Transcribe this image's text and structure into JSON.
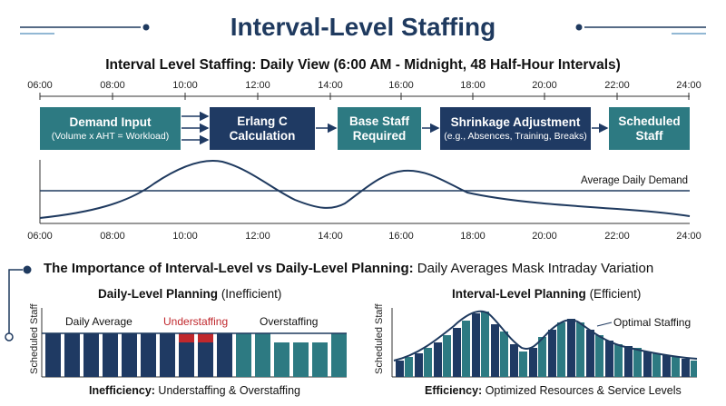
{
  "header": {
    "title": "Interval-Level Staffing",
    "subtitle": "Interval Level Staffing: Daily View (6:00 AM - Midnight, 48 Half-Hour Intervals)"
  },
  "time_ticks": [
    "06:00",
    "08:00",
    "10:00",
    "12:00",
    "14:00",
    "16:00",
    "18:00",
    "20:00",
    "22:00",
    "24:00"
  ],
  "flow": {
    "demand_input": {
      "main": "Demand Input",
      "sub": "(Volume x AHT = Workload)"
    },
    "erlang": {
      "main_1": "Erlang C",
      "main_2": "Calculation"
    },
    "base_staff": {
      "main_1": "Base Staff",
      "main_2": "Required"
    },
    "shrinkage": {
      "main": "Shrinkage Adjustment",
      "sub": "(e.g., Absences, Training, Breaks)"
    },
    "scheduled": {
      "main_1": "Scheduled",
      "main_2": "Staff"
    }
  },
  "demand_chart": {
    "avg_label": "Average Daily Demand"
  },
  "importance": {
    "bold": "The Importance of Interval-Level vs Daily-Level Planning:",
    "light": "Daily Averages Mask Intraday Variation"
  },
  "daily": {
    "title_bold": "Daily-Level Planning",
    "title_light": "(Inefficient)",
    "ylabel": "Scheduled Staff",
    "avg_label": "Daily Average",
    "under_label": "Understaffing",
    "over_label": "Overstaffing",
    "footer_bold": "Inefficiency:",
    "footer_light": "Understaffing & Overstaffing"
  },
  "interval": {
    "title_bold": "Interval-Level Planning",
    "title_light": "(Efficient)",
    "ylabel": "Scheduled Staff",
    "optimal_label": "Optimal Staffing",
    "footer_bold": "Efficiency:",
    "footer_light": "Optimized Resources & Service Levels"
  },
  "colors": {
    "navy": "#1f3a63",
    "teal": "#2d7a82",
    "red": "#c0282d",
    "light_blue": "#8fb4cf"
  }
}
